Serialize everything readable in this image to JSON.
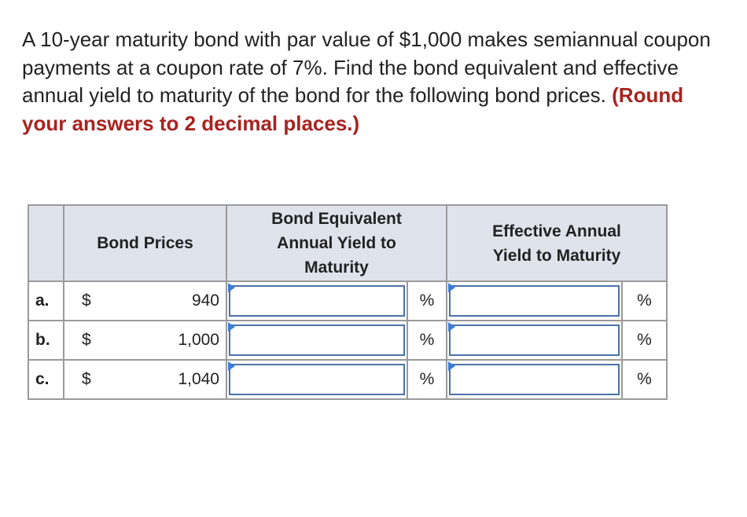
{
  "question": {
    "text": "A 10-year maturity bond with par value of $1,000 makes semiannual coupon payments at a coupon rate of 7%. Find the bond equivalent and effective annual yield to maturity of the bond for the following bond prices.",
    "instruction": "(Round your answers to 2 decimal places.)"
  },
  "table": {
    "headers": [
      "Bond Prices",
      "Bond Equivalent Annual Yield to Maturity",
      "Effective Annual Yield to Maturity"
    ],
    "rows": [
      {
        "label": "a.",
        "currency": "$",
        "price": "940",
        "unit_1": "%",
        "unit_2": "%"
      },
      {
        "label": "b.",
        "currency": "$",
        "price": "1,000",
        "unit_1": "%",
        "unit_2": "%"
      },
      {
        "label": "c.",
        "currency": "$",
        "price": "1,040",
        "unit_1": "%",
        "unit_2": "%"
      }
    ]
  }
}
